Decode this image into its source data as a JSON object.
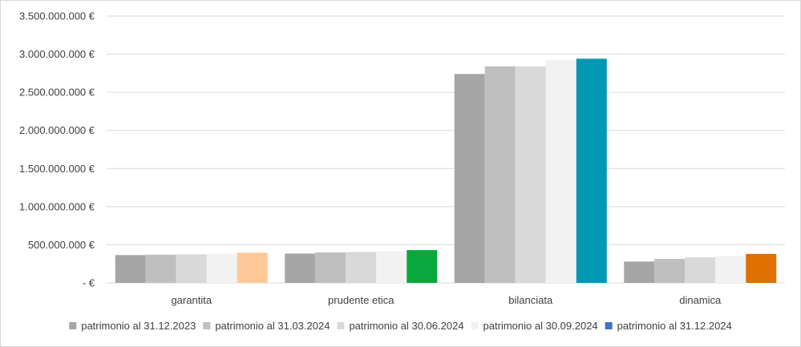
{
  "chart_data": {
    "type": "bar",
    "title": "",
    "xlabel": "",
    "ylabel": "",
    "categories": [
      "garantita",
      "prudente etica",
      "bilanciata",
      "dinamica"
    ],
    "y_ticks": [
      "-  €",
      "500.000.000 €",
      "1.000.000.000 €",
      "1.500.000.000 €",
      "2.000.000.000 €",
      "2.500.000.000 €",
      "3.000.000.000 €",
      "3.500.000.000 €"
    ],
    "ylim": [
      0,
      3500000000
    ],
    "grid": true,
    "legend_position": "bottom",
    "series": [
      {
        "name": "patrimonio al 31.12.2023",
        "color": "#a6a6a6",
        "values": [
          365000000,
          385000000,
          2740000000,
          280000000
        ]
      },
      {
        "name": "patrimonio al 31.03.2024",
        "color": "#bfbfbf",
        "values": [
          370000000,
          400000000,
          2840000000,
          315000000
        ]
      },
      {
        "name": "patrimonio al 30.06.2024",
        "color": "#d9d9d9",
        "values": [
          375000000,
          405000000,
          2840000000,
          335000000
        ]
      },
      {
        "name": "patrimonio al 30.09.2024",
        "color": "#f2f2f2",
        "values": [
          385000000,
          415000000,
          2925000000,
          355000000
        ]
      },
      {
        "name": "patrimonio al 31.12.2024",
        "color": "#4472c4",
        "values": [
          395000000,
          430000000,
          2940000000,
          380000000
        ]
      }
    ],
    "highlight_colors": [
      "#ffc896",
      "#0aa83c",
      "#0098b3",
      "#e07000"
    ]
  }
}
